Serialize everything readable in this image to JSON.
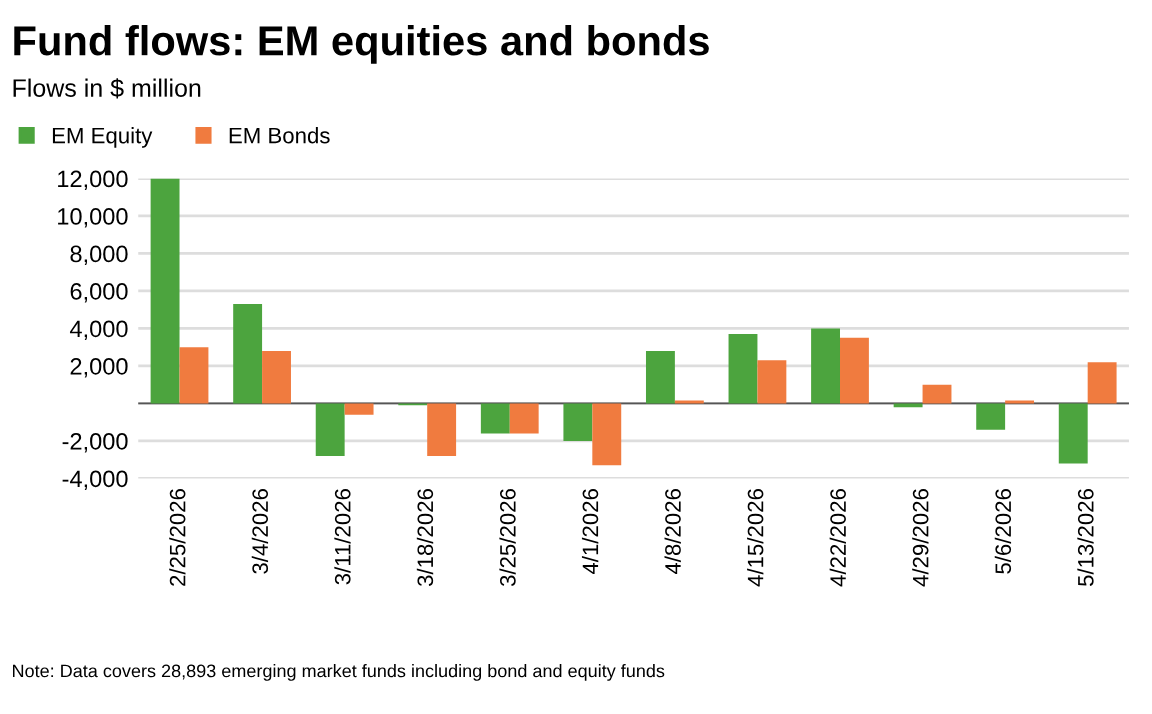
{
  "chart_data": {
    "type": "bar",
    "title": "Fund flows: EM equities and bonds",
    "subtitle": "Flows in $ million",
    "categories": [
      "2/25/2026",
      "3/4/2026",
      "3/11/2026",
      "3/18/2026",
      "3/25/2026",
      "4/1/2026",
      "4/8/2026",
      "4/15/2026",
      "4/22/2026",
      "4/29/2026",
      "5/6/2026",
      "5/13/2026"
    ],
    "series": [
      {
        "name": "EM Equity",
        "color": "#4ca43e",
        "values": [
          12000,
          5300,
          -2800,
          -100,
          -1600,
          -2000,
          2800,
          3700,
          4000,
          -200,
          -1400,
          -3200
        ]
      },
      {
        "name": "EM Bonds",
        "color": "#f07b3f",
        "values": [
          3000,
          2800,
          -600,
          -2800,
          -1600,
          -3300,
          150,
          2300,
          3500,
          1000,
          150,
          2200
        ]
      }
    ],
    "ylim": [
      -4000,
      12000
    ],
    "yticks": [
      {
        "value": -4000,
        "label": "-4,000"
      },
      {
        "value": -2000,
        "label": "-2,000"
      },
      {
        "value": 0,
        "label": null
      },
      {
        "value": 2000,
        "label": "2,000"
      },
      {
        "value": 4000,
        "label": "4,000"
      },
      {
        "value": 6000,
        "label": "6,000"
      },
      {
        "value": 8000,
        "label": "8,000"
      },
      {
        "value": 10000,
        "label": "10,000"
      },
      {
        "value": 12000,
        "label": "12,000"
      }
    ],
    "grid": "y",
    "legend": "top left",
    "annotations": [
      "Note: Data covers 28,893 emerging market funds including bond and equity funds"
    ]
  }
}
